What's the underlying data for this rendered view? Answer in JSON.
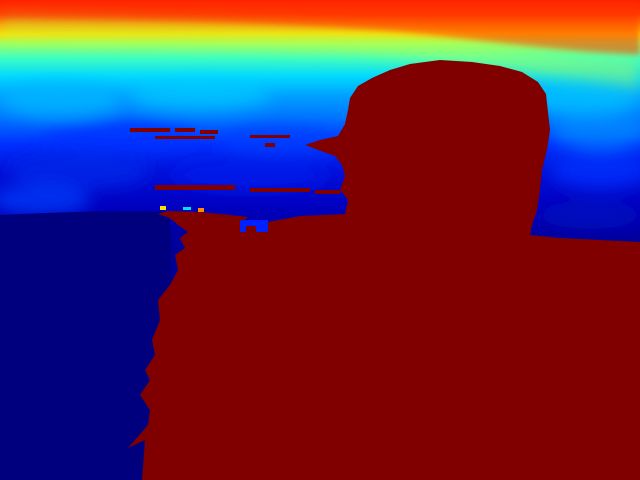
{
  "image": {
    "kind": "depth-map",
    "colormap": "jet",
    "colors": {
      "near": "#800000",
      "far_floor": "#00007f",
      "blue": "#0000ff",
      "deep_blue": "#0010c8",
      "sky_blue": "#0078ff",
      "cyan": "#00e4ff",
      "light_cyan": "#40ffd0",
      "green": "#80ff80",
      "yellow": "#ffe000",
      "orange": "#ff8c00",
      "red": "#ff2000"
    }
  }
}
